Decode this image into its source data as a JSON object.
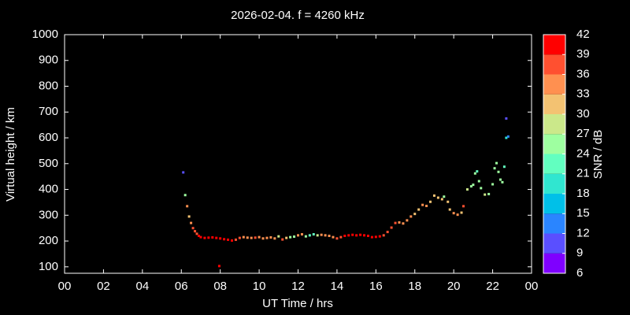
{
  "chart_data": {
    "type": "scatter",
    "title": "2026-02-04. f = 4260 kHz",
    "xlabel": "UT Time / hrs",
    "ylabel": "Virtual height / km",
    "xlim": [
      0,
      24
    ],
    "xticks": [
      {
        "value": 0,
        "label": "00"
      },
      {
        "value": 2,
        "label": "02"
      },
      {
        "value": 4,
        "label": "04"
      },
      {
        "value": 6,
        "label": "06"
      },
      {
        "value": 8,
        "label": "08"
      },
      10,
      12,
      14,
      16,
      18,
      20,
      22,
      {
        "value": 24,
        "label": "00"
      }
    ],
    "ylim": [
      75,
      1000
    ],
    "yticks": [
      100,
      200,
      300,
      400,
      500,
      600,
      700,
      800,
      900,
      1000
    ],
    "x": [
      6.1,
      6.2,
      6.3,
      6.4,
      6.5,
      6.6,
      6.7,
      6.8,
      6.9,
      7.0,
      7.2,
      7.4,
      7.6,
      7.8,
      8.0,
      7.95,
      8.2,
      8.4,
      8.6,
      8.8,
      9.0,
      9.2,
      9.4,
      9.6,
      9.8,
      10.0,
      10.2,
      10.4,
      10.6,
      10.8,
      11.0,
      11.2,
      11.4,
      11.6,
      11.8,
      12.0,
      12.2,
      12.4,
      12.6,
      12.8,
      13.0,
      13.2,
      13.4,
      13.6,
      13.8,
      14.0,
      14.2,
      14.4,
      14.6,
      14.8,
      15.0,
      15.2,
      15.4,
      15.6,
      15.8,
      16.0,
      16.2,
      16.4,
      16.6,
      16.8,
      17.0,
      17.2,
      17.4,
      17.6,
      17.8,
      18.0,
      18.2,
      18.4,
      18.6,
      18.8,
      19.0,
      19.2,
      19.4,
      19.5,
      19.7,
      19.8,
      20.0,
      20.2,
      20.4,
      20.5,
      20.7,
      20.9,
      21.0,
      21.1,
      21.2,
      21.3,
      21.4,
      21.6,
      21.8,
      22.0,
      22.1,
      22.2,
      22.3,
      22.4,
      22.5,
      22.6,
      22.7,
      22.8,
      22.7
    ],
    "y": [
      466,
      378,
      335,
      295,
      270,
      250,
      238,
      228,
      220,
      215,
      212,
      213,
      214,
      212,
      210,
      103,
      207,
      205,
      202,
      205,
      212,
      215,
      213,
      212,
      213,
      215,
      210,
      212,
      214,
      210,
      218,
      206,
      212,
      215,
      217,
      222,
      226,
      218,
      222,
      226,
      222,
      224,
      222,
      220,
      215,
      210,
      215,
      220,
      222,
      224,
      222,
      224,
      222,
      220,
      215,
      216,
      218,
      222,
      235,
      252,
      270,
      272,
      268,
      280,
      295,
      305,
      322,
      340,
      336,
      352,
      376,
      368,
      362,
      372,
      352,
      322,
      308,
      302,
      310,
      335,
      400,
      412,
      418,
      462,
      470,
      432,
      405,
      380,
      382,
      420,
      482,
      502,
      468,
      438,
      428,
      488,
      600,
      605,
      675
    ],
    "snr": [
      10,
      24,
      33,
      31,
      33,
      36,
      37,
      38,
      39,
      40,
      40,
      41,
      40,
      41,
      40,
      40,
      41,
      40,
      41,
      38,
      36,
      34,
      35,
      33,
      36,
      35,
      34,
      33,
      35,
      33,
      27,
      36,
      30,
      25,
      24,
      33,
      35,
      25,
      22,
      21,
      27,
      33,
      34,
      33,
      35,
      37,
      38,
      40,
      39,
      41,
      40,
      39,
      41,
      40,
      39,
      40,
      39,
      38,
      37,
      37,
      36,
      35,
      35,
      34,
      33,
      32,
      30,
      33,
      34,
      30,
      32,
      31,
      30,
      26,
      31,
      32,
      33,
      34,
      32,
      38,
      27,
      25,
      26,
      24,
      23,
      25,
      26,
      27,
      26,
      25,
      25,
      26,
      24,
      24,
      25,
      23,
      19,
      14,
      10
    ],
    "colorbar": {
      "label": "SNR / dB",
      "ticks": [
        6,
        9,
        12,
        15,
        18,
        21,
        24,
        27,
        30,
        33,
        36,
        39,
        42
      ],
      "colors": [
        "#7f00ff",
        "#5a4fff",
        "#2a85ff",
        "#00c0e8",
        "#30e6d0",
        "#62ffc0",
        "#9effa0",
        "#cbe88a",
        "#f3c272",
        "#ff9050",
        "#ff5030",
        "#ff0000"
      ]
    }
  }
}
